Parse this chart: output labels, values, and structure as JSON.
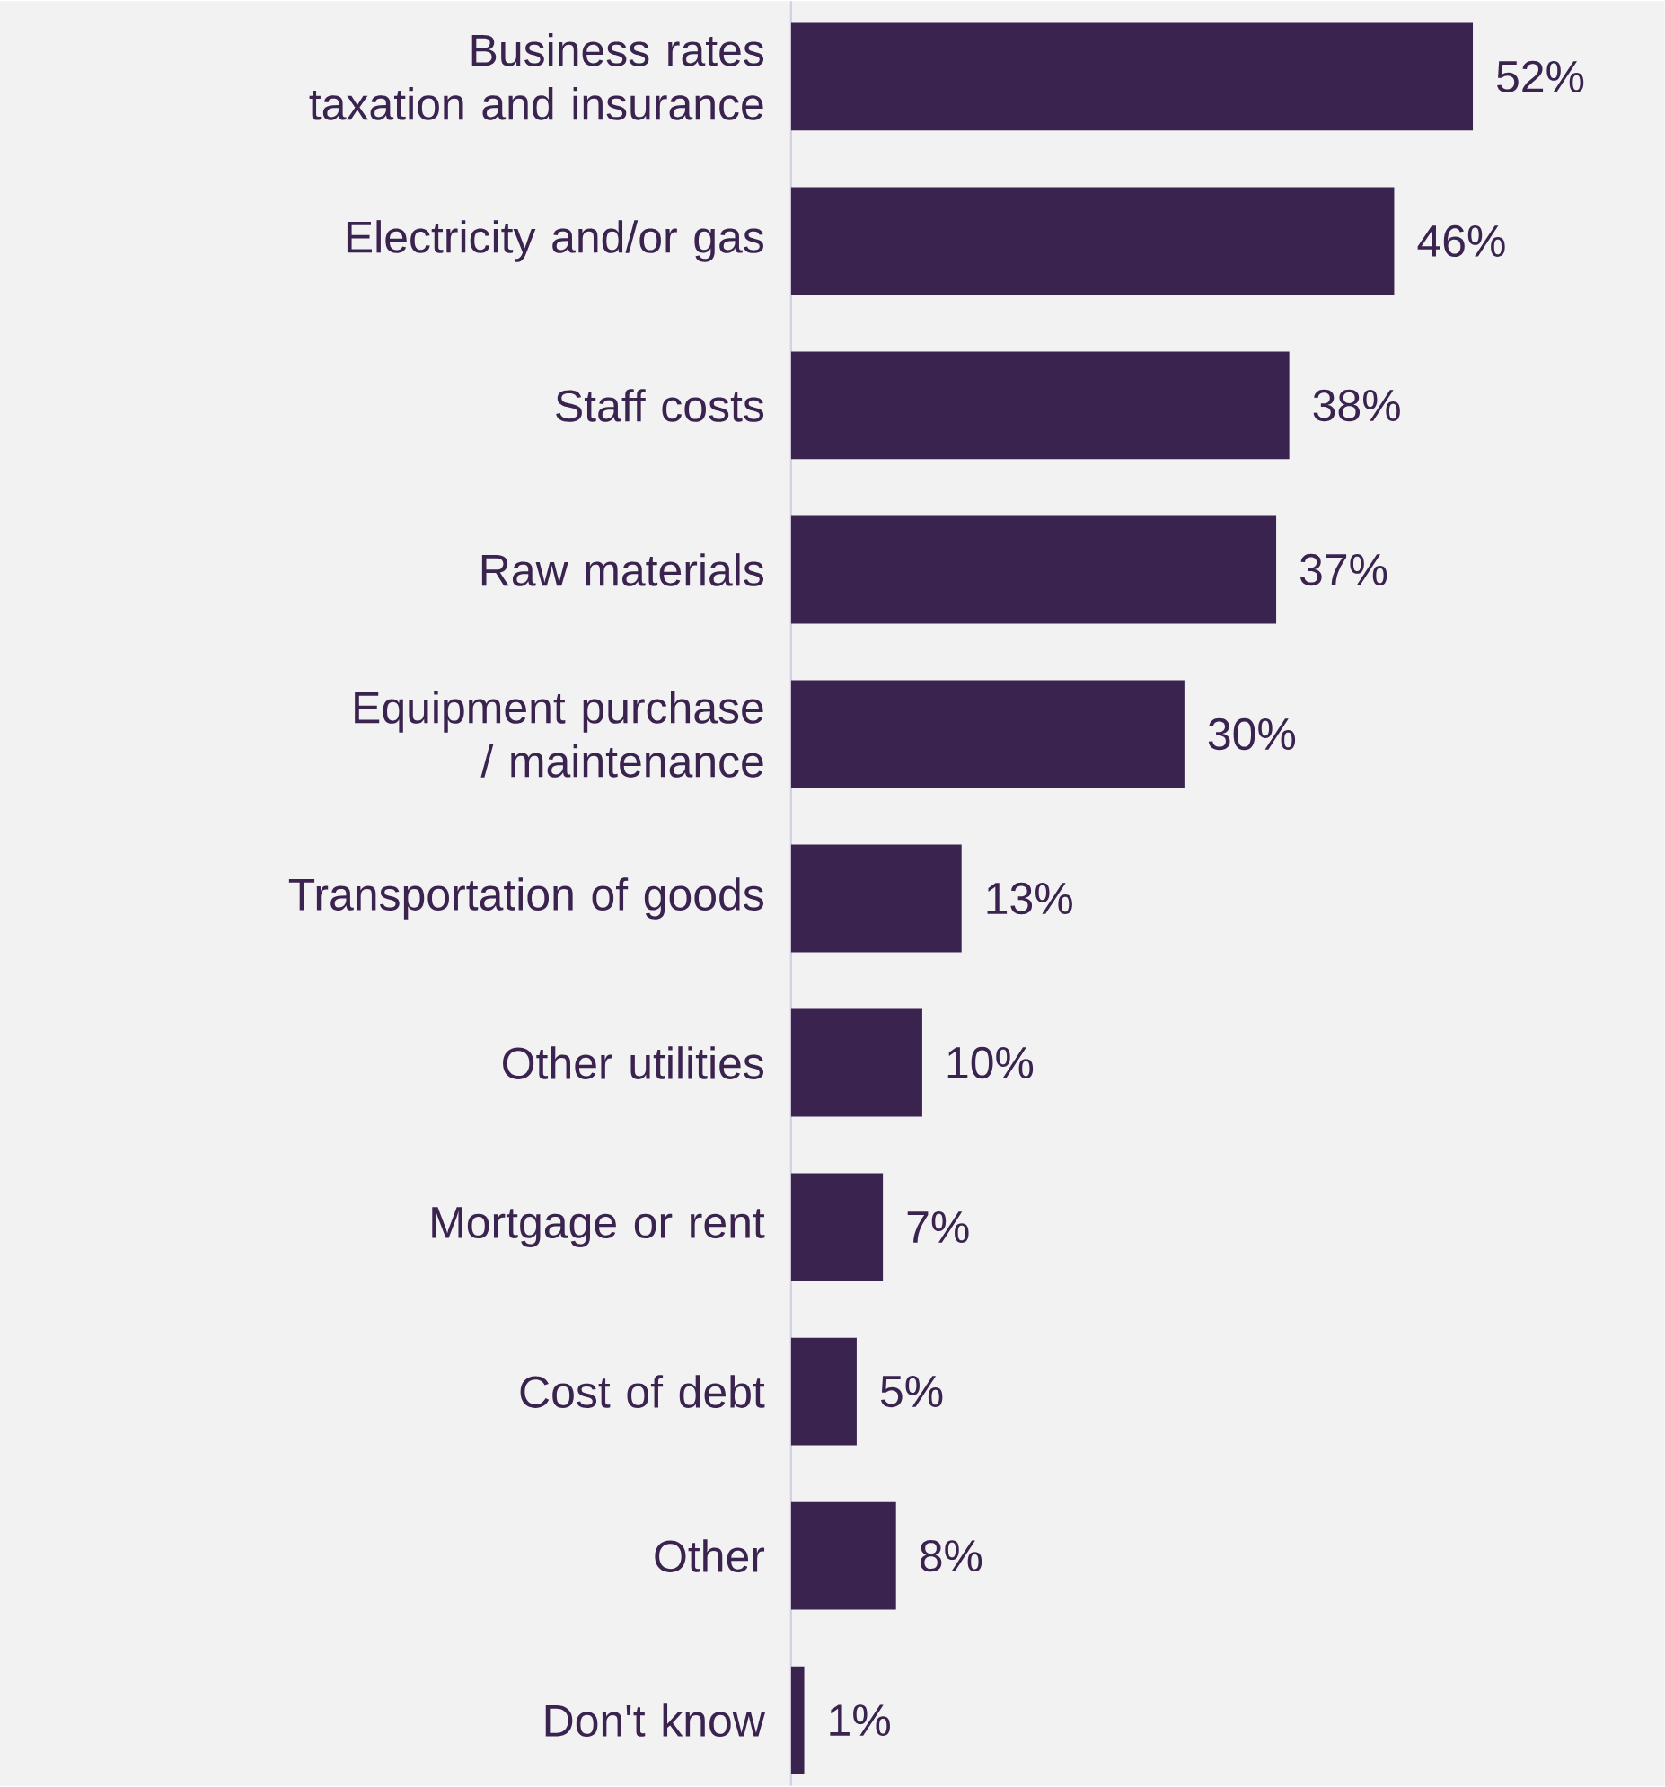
{
  "chart_data": {
    "type": "bar",
    "orientation": "horizontal",
    "color": "#3b2350",
    "categories": [
      "Business rates taxation and insurance",
      "Electricity and/or gas",
      "Staff costs",
      "Raw materials",
      "Equipment purchase / maintenance",
      "Transportation of goods",
      "Other utilities",
      "Mortgage or rent",
      "Cost of debt",
      "Other",
      "Don't know"
    ],
    "values": [
      52,
      46,
      38,
      37,
      30,
      13,
      10,
      7,
      5,
      8,
      1
    ],
    "value_labels": [
      "52%",
      "46%",
      "38%",
      "37%",
      "30%",
      "13%",
      "10%",
      "7%",
      "5%",
      "8%",
      "1%"
    ],
    "tick_labels": "y"
  }
}
